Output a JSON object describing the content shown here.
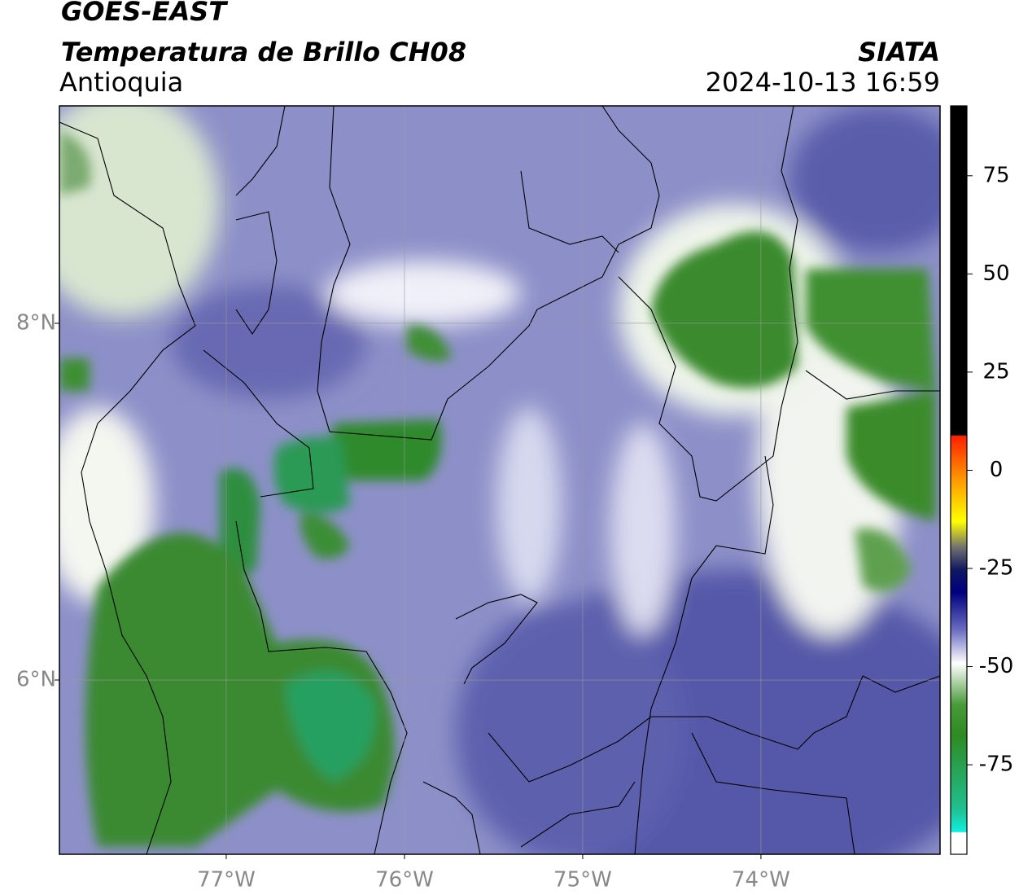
{
  "header": {
    "title": "GOES-EAST",
    "subtitle": "Temperatura de Brillo CH08",
    "region": "Antioquia",
    "source": "SIATA",
    "datetime": "2024-10-13 16:59"
  },
  "map": {
    "lonlim": [
      -77.936,
      -72.995
    ],
    "latlim": [
      5.023,
      9.219
    ],
    "lon_ticks": [
      {
        "value": -77,
        "label": "77°W"
      },
      {
        "value": -76,
        "label": "76°W"
      },
      {
        "value": -75,
        "label": "75°W"
      },
      {
        "value": -74,
        "label": "74°W"
      }
    ],
    "lat_ticks": [
      {
        "value": 8,
        "label": "8°N"
      },
      {
        "value": 6,
        "label": "6°N"
      }
    ]
  },
  "colorbar": {
    "lim": [
      -97.8,
      92.8
    ],
    "ticks": [
      75,
      50,
      25,
      0,
      -25,
      -50,
      -75
    ]
  }
}
